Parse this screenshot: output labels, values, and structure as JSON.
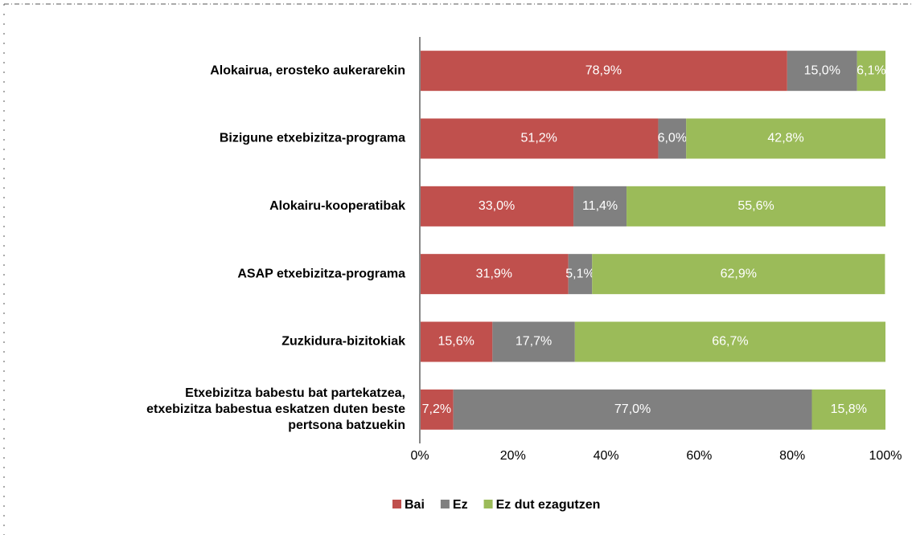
{
  "chart_data": {
    "type": "stacked_barh",
    "categories": [
      "Alokairua, erosteko aukerarekin",
      "Bizigune etxebizitza-programa",
      "Alokairu-kooperatibak",
      "ASAP etxebizitza-programa",
      "Zuzkidura-bizitokiak",
      "Etxebizitza babestu bat partekatzea,\netxebizitza babestua eskatzen duten beste\npertsona batzuekin"
    ],
    "series": [
      {
        "name": "Bai",
        "color": "#c0504d",
        "values": [
          78.9,
          51.2,
          33.0,
          31.9,
          15.6,
          7.2
        ],
        "value_labels": [
          "78,9%",
          "51,2%",
          "33,0%",
          "31,9%",
          "15,6%",
          "7,2%"
        ]
      },
      {
        "name": "Ez",
        "color": "#808080",
        "values": [
          15.0,
          6.0,
          11.4,
          5.1,
          17.7,
          77.0
        ],
        "value_labels": [
          "15,0%",
          "6,0%",
          "11,4%",
          "5,1%",
          "17,7%",
          "77,0%"
        ]
      },
      {
        "name": "Ez dut ezagutzen",
        "color": "#9bbb59",
        "values": [
          6.1,
          42.8,
          55.6,
          62.9,
          66.7,
          15.8
        ],
        "value_labels": [
          "6,1%",
          "42,8%",
          "55,6%",
          "62,9%",
          "66,7%",
          "15,8%"
        ]
      }
    ],
    "xlim": [
      0,
      100
    ],
    "xticks": [
      {
        "value": 0,
        "label": "0%"
      },
      {
        "value": 20,
        "label": "20%"
      },
      {
        "value": 40,
        "label": "40%"
      },
      {
        "value": 60,
        "label": "60%"
      },
      {
        "value": 80,
        "label": "80%"
      },
      {
        "value": 100,
        "label": "100%"
      }
    ],
    "legend": "bottom"
  }
}
